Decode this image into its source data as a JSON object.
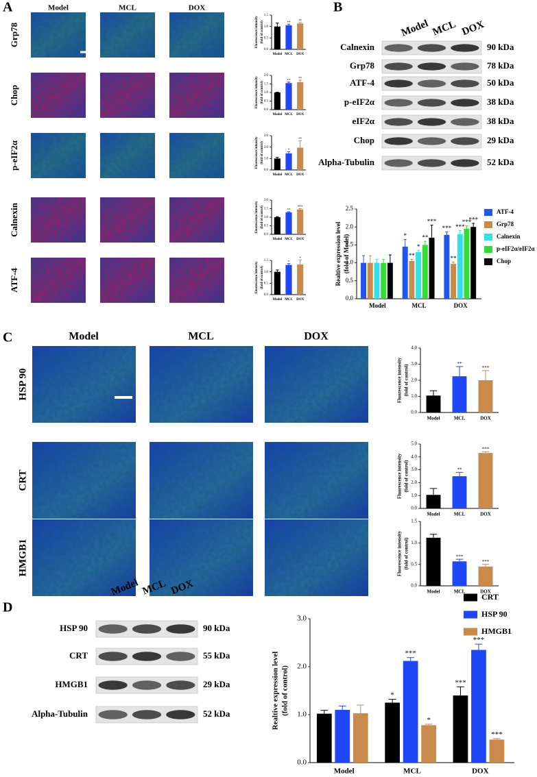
{
  "panels": {
    "A": {
      "label": "A",
      "columns": [
        "Model",
        "MCL",
        "DOX"
      ],
      "rows": [
        "Grp78",
        "Chop",
        "p-eIF2α",
        "Calnexin",
        "ATF-4"
      ]
    },
    "B": {
      "label": "B",
      "columns": [
        "Model",
        "MCL",
        "DOX"
      ],
      "blots": [
        {
          "name": "Calnexin",
          "size": "90 kDa"
        },
        {
          "name": "Grp78",
          "size": "78 kDa"
        },
        {
          "name": "ATF-4",
          "size": "50 kDa"
        },
        {
          "name": "p-eIF2α",
          "size": "38 kDa"
        },
        {
          "name": "eIF2α",
          "size": "38 kDa"
        },
        {
          "name": "Chop",
          "size": "29 kDa"
        },
        {
          "name": "Alpha-Tubulin",
          "size": "52 kDa"
        }
      ]
    },
    "C": {
      "label": "C",
      "columns": [
        "Model",
        "MCL",
        "DOX"
      ],
      "rows": [
        "HSP 90",
        "CRT",
        "HMGB1"
      ]
    },
    "D": {
      "label": "D",
      "columns": [
        "Model",
        "MCL",
        "DOX"
      ],
      "blots": [
        {
          "name": "HSP 90",
          "size": "90 kDa"
        },
        {
          "name": "CRT",
          "size": "55 kDa"
        },
        {
          "name": "HMGB1",
          "size": "29 kDa"
        },
        {
          "name": "Alpha-Tubulin",
          "size": "52 kDa"
        }
      ]
    }
  },
  "chart_data": [
    {
      "type": "bar",
      "categories": [
        "Model",
        "MCL",
        "DOX"
      ],
      "ylabel": [
        "Fluorescence intensity",
        "(fold of control)"
      ],
      "values": [
        1.0,
        1.05,
        1.13
      ],
      "errors": [
        0.15,
        0.05,
        0.04
      ],
      "annotations": [
        null,
        "**",
        "**"
      ],
      "colors": [
        "#000000",
        "#1f47f5",
        "#c98a4c"
      ],
      "ylim": [
        0,
        1.5
      ],
      "yticks": [
        {
          "value": 0,
          "label": "0.0"
        },
        {
          "value": 0.5,
          "label": "0.5"
        },
        {
          "value": 1,
          "label": "1.0"
        },
        {
          "value": 1.5,
          "label": "1.5"
        }
      ]
    },
    {
      "type": "bar",
      "categories": [
        "Model",
        "MCL",
        "DOX"
      ],
      "ylabel": [
        "Fluorescence intensity",
        "(fold of control)"
      ],
      "values": [
        1.0,
        1.55,
        1.6
      ],
      "errors": [
        0.02,
        0.06,
        0.12
      ],
      "annotations": [
        null,
        "**",
        "**"
      ],
      "colors": [
        "#000000",
        "#1f47f5",
        "#c98a4c"
      ],
      "ylim": [
        0,
        2
      ],
      "yticks": [
        {
          "value": 0,
          "label": "0.0"
        },
        {
          "value": 0.5,
          "label": "0.5"
        },
        {
          "value": 1,
          "label": "1.0"
        },
        {
          "value": 1.5,
          "label": "1.5"
        },
        {
          "value": 2,
          "label": "2.0"
        }
      ]
    },
    {
      "type": "bar",
      "categories": [
        "Model",
        "MCL",
        "DOX"
      ],
      "ylabel": [
        "Fluorescence intensity",
        "(fold of control)"
      ],
      "values": [
        1.0,
        1.45,
        1.95
      ],
      "errors": [
        0.1,
        0.15,
        0.6
      ],
      "annotations": [
        null,
        "*",
        "**"
      ],
      "colors": [
        "#000000",
        "#1f47f5",
        "#c98a4c"
      ],
      "ylim": [
        0,
        3
      ],
      "yticks": [
        {
          "value": 0,
          "label": "0.0"
        },
        {
          "value": 1,
          "label": "1.0"
        },
        {
          "value": 2,
          "label": "2.0"
        },
        {
          "value": 3,
          "label": "3.0"
        }
      ]
    },
    {
      "type": "bar",
      "categories": [
        "Model",
        "MCL",
        "DOX"
      ],
      "ylabel": [
        "Fluorescence intensity",
        "(fold of control)"
      ],
      "values": [
        1.0,
        1.28,
        1.45
      ],
      "errors": [
        0.03,
        0.04,
        0.05
      ],
      "annotations": [
        null,
        "**",
        "***"
      ],
      "colors": [
        "#000000",
        "#1f47f5",
        "#c98a4c"
      ],
      "ylim": [
        0,
        2
      ],
      "yticks": [
        {
          "value": 0,
          "label": "0.0"
        },
        {
          "value": 0.5,
          "label": "0.5"
        },
        {
          "value": 1,
          "label": "1.0"
        },
        {
          "value": 1.5,
          "label": "1.5"
        },
        {
          "value": 2,
          "label": "2.0"
        }
      ]
    },
    {
      "type": "bar",
      "categories": [
        "Model",
        "MCL",
        "DOX"
      ],
      "ylabel": [
        "Fluorescence intensity",
        "(fold of control)"
      ],
      "values": [
        1.0,
        1.3,
        1.32
      ],
      "errors": [
        0.08,
        0.06,
        0.2
      ],
      "annotations": [
        null,
        "*",
        "*"
      ],
      "colors": [
        "#000000",
        "#1f47f5",
        "#c98a4c"
      ],
      "ylim": [
        0,
        1.5
      ],
      "yticks": [
        {
          "value": 0,
          "label": "0.0"
        },
        {
          "value": 0.5,
          "label": "0.5"
        },
        {
          "value": 1,
          "label": "1.0"
        },
        {
          "value": 1.5,
          "label": "1.5"
        }
      ]
    },
    {
      "type": "bar",
      "categories": [
        "Model",
        "MCL",
        "DOX"
      ],
      "ylabel": [
        "Realtive expression level",
        "(fold of Model)"
      ],
      "series": [
        {
          "name": "ATF-4",
          "color": "#2255ee",
          "values": [
            1.0,
            1.45,
            1.78
          ],
          "errors": [
            0.2,
            0.2,
            0.08
          ],
          "annotations": [
            null,
            "*",
            "***"
          ]
        },
        {
          "name": "Grp78",
          "color": "#c98a4c",
          "values": [
            1.0,
            1.05,
            0.97
          ],
          "errors": [
            0.2,
            0.05,
            0.05
          ],
          "annotations": [
            null,
            "**",
            "**"
          ]
        },
        {
          "name": "Calnexin",
          "color": "#33e0e8",
          "values": [
            1.0,
            1.3,
            1.8
          ],
          "errors": [
            0.1,
            0.05,
            0.1
          ],
          "annotations": [
            null,
            "*",
            "***"
          ]
        },
        {
          "name": "p-eIF2α/eIF2α",
          "color": "#33dd33",
          "values": [
            1.0,
            1.5,
            1.95
          ],
          "errors": [
            0.1,
            0.1,
            0.08
          ],
          "annotations": [
            null,
            "**",
            "***"
          ]
        },
        {
          "name": "Chop",
          "color": "#000000",
          "values": [
            1.0,
            1.7,
            2.0
          ],
          "errors": [
            0.22,
            0.35,
            0.1
          ],
          "annotations": [
            null,
            "***",
            "***"
          ]
        }
      ],
      "ylim": [
        0,
        2.5
      ],
      "yticks": [
        {
          "value": 0,
          "label": "0.0"
        },
        {
          "value": 0.5,
          "label": "0.5"
        },
        {
          "value": 1,
          "label": "1.0"
        },
        {
          "value": 1.5,
          "label": "1.5"
        },
        {
          "value": 2,
          "label": "2.0"
        },
        {
          "value": 2.5,
          "label": "2.5"
        }
      ]
    },
    {
      "type": "bar",
      "categories": [
        "Model",
        "MCL",
        "DOX"
      ],
      "ylabel": [
        "Fluorescence intensity",
        "(fold of control)"
      ],
      "values": [
        1.05,
        2.25,
        2.0
      ],
      "errors": [
        0.3,
        0.6,
        0.6
      ],
      "annotations": [
        null,
        "**",
        "***"
      ],
      "colors": [
        "#000000",
        "#1f47f5",
        "#c98a4c"
      ],
      "ylim": [
        0,
        4
      ],
      "yticks": [
        {
          "value": 0,
          "label": "0.0"
        },
        {
          "value": 1,
          "label": "1.0"
        },
        {
          "value": 2,
          "label": "2.0"
        },
        {
          "value": 3,
          "label": "3.0"
        },
        {
          "value": 4,
          "label": "4.0"
        }
      ]
    },
    {
      "type": "bar",
      "categories": [
        "Model",
        "MCL",
        "DOX"
      ],
      "ylabel": [
        "Fluorescence intensity",
        "(fold of control)"
      ],
      "values": [
        1.05,
        2.5,
        4.3
      ],
      "errors": [
        0.5,
        0.3,
        0.1
      ],
      "annotations": [
        null,
        "**",
        "***"
      ],
      "colors": [
        "#000000",
        "#1f47f5",
        "#c98a4c"
      ],
      "ylim": [
        0,
        5
      ],
      "yticks": [
        {
          "value": 0,
          "label": "0.0"
        },
        {
          "value": 1,
          "label": "1.0"
        },
        {
          "value": 2,
          "label": "2.0"
        },
        {
          "value": 3,
          "label": "3.0"
        },
        {
          "value": 4,
          "label": "4.0"
        },
        {
          "value": 5,
          "label": "5.0"
        }
      ]
    },
    {
      "type": "bar",
      "categories": [
        "Model",
        "MCL",
        "DOX"
      ],
      "ylabel": [
        "Fluorescence intensity",
        "(fold of control)"
      ],
      "values": [
        1.12,
        0.57,
        0.45
      ],
      "errors": [
        0.08,
        0.05,
        0.05
      ],
      "annotations": [
        null,
        "***",
        "***"
      ],
      "colors": [
        "#000000",
        "#1f47f5",
        "#c98a4c"
      ],
      "ylim": [
        0,
        1.5
      ],
      "yticks": [
        {
          "value": 0,
          "label": "0.0"
        },
        {
          "value": 0.5,
          "label": "0.5"
        },
        {
          "value": 1,
          "label": "1.0"
        },
        {
          "value": 1.5,
          "label": "1.5"
        }
      ]
    },
    {
      "type": "bar",
      "categories": [
        "Model",
        "MCL",
        "DOX"
      ],
      "ylabel": [
        "Realtive expression level",
        "(fold of control)"
      ],
      "series": [
        {
          "name": "CRT",
          "color": "#000000",
          "values": [
            1.02,
            1.25,
            1.4
          ],
          "errors": [
            0.07,
            0.07,
            0.18
          ],
          "annotations": [
            null,
            "*",
            "***"
          ]
        },
        {
          "name": "HSP 90",
          "color": "#1f47f5",
          "values": [
            1.1,
            2.12,
            2.35
          ],
          "errors": [
            0.08,
            0.07,
            0.12
          ],
          "annotations": [
            null,
            "***",
            "***"
          ]
        },
        {
          "name": "HMGB1",
          "color": "#c98a4c",
          "values": [
            1.03,
            0.78,
            0.48
          ],
          "errors": [
            0.17,
            0.02,
            0.02
          ],
          "annotations": [
            null,
            "*",
            "***"
          ]
        }
      ],
      "ylim": [
        0,
        3
      ],
      "yticks": [
        {
          "value": 0,
          "label": "0.0"
        },
        {
          "value": 1,
          "label": "1.0"
        },
        {
          "value": 2,
          "label": "2.0"
        },
        {
          "value": 3,
          "label": "3.0"
        }
      ]
    }
  ]
}
